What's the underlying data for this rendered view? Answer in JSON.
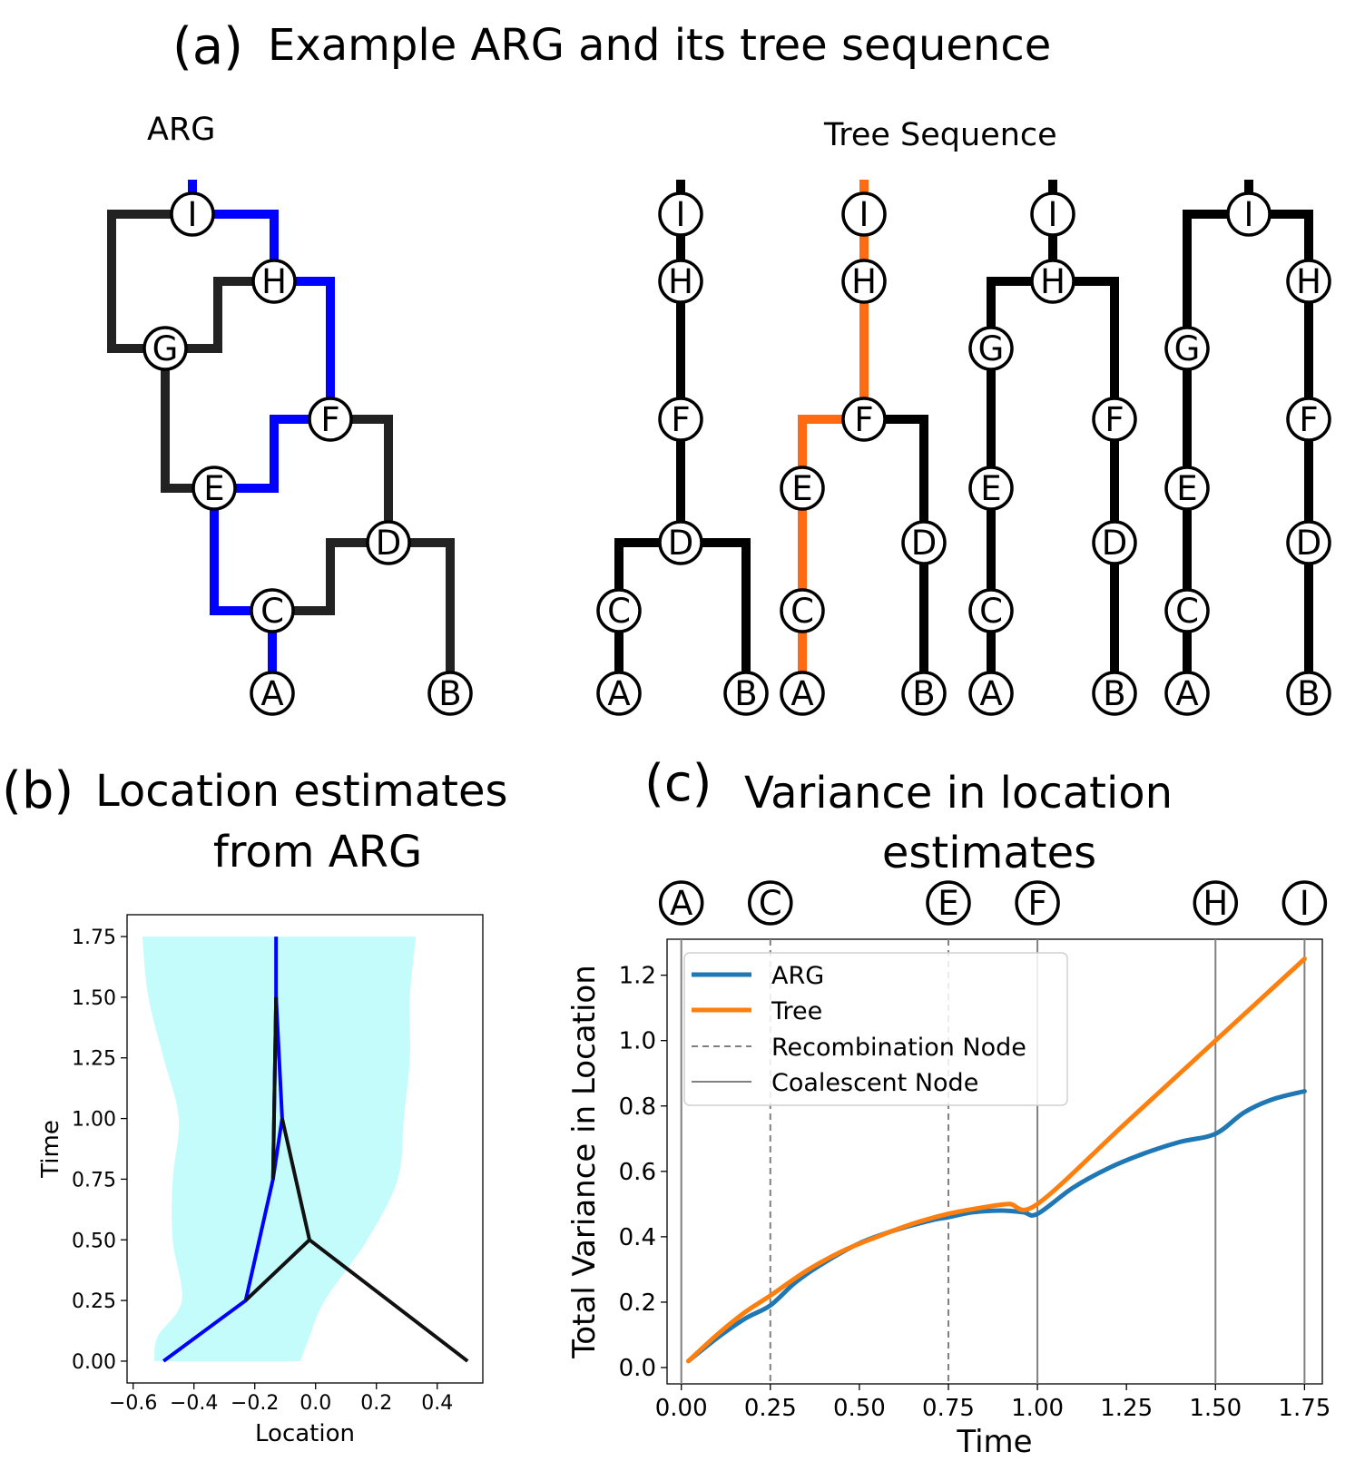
{
  "panel_a": {
    "letter": "(a)",
    "title": "Example ARG and its tree  sequence",
    "arg_label": "ARG",
    "tree_label": "Tree Sequence"
  },
  "panel_b": {
    "letter": "(b)",
    "title_line1": "Location estimates",
    "title_line2": "from ARG"
  },
  "panel_c": {
    "letter": "(c)",
    "title_line1": "Variance in location",
    "title_line2": "estimates",
    "node_markers": [
      "A",
      "C",
      "E",
      "F",
      "H",
      "I"
    ]
  },
  "colors": {
    "arg_path": "#0000ff",
    "tree_path": "#ff6a13",
    "edge": "#222222",
    "ci_band": "#c4fcfc",
    "arg_series": "#1f77b4",
    "tree_series": "#ff7f0e",
    "node_line": "#808080"
  },
  "chart_data": [
    {
      "type": "line",
      "panel": "b",
      "title": "",
      "xlabel": "Location",
      "ylabel": "Time",
      "xlim": [
        -0.62,
        0.55
      ],
      "ylim": [
        -0.09,
        1.84
      ],
      "xticks": [
        -0.6,
        -0.4,
        -0.2,
        0.0,
        0.2,
        0.4
      ],
      "xtick_labels": [
        "−0.6",
        "−0.4",
        "−0.2",
        "0.0",
        "0.2",
        "0.4"
      ],
      "yticks": [
        0.0,
        0.25,
        0.5,
        0.75,
        1.0,
        1.25,
        1.5,
        1.75
      ],
      "ytick_labels": [
        "0.00",
        "0.25",
        "0.50",
        "0.75",
        "1.00",
        "1.25",
        "1.50",
        "1.75"
      ],
      "band": {
        "time": [
          0.0,
          0.1,
          0.25,
          0.5,
          0.75,
          1.0,
          1.25,
          1.5,
          1.75
        ],
        "lower": [
          -0.53,
          -0.52,
          -0.44,
          -0.47,
          -0.47,
          -0.45,
          -0.5,
          -0.55,
          -0.57
        ],
        "upper": [
          -0.05,
          -0.02,
          0.03,
          0.17,
          0.27,
          0.29,
          0.31,
          0.31,
          0.33
        ]
      },
      "series": [
        {
          "name": "arg_path",
          "segments": [
            [
              [
                -0.5,
                0.0
              ],
              [
                -0.23,
                0.25
              ],
              [
                -0.14,
                0.75
              ],
              [
                -0.13,
                1.5
              ],
              [
                -0.13,
                1.75
              ]
            ],
            [
              [
                -0.13,
                1.5
              ],
              [
                -0.11,
                1.0
              ],
              [
                -0.14,
                0.75
              ]
            ]
          ]
        },
        {
          "name": "edges",
          "segments": [
            [
              [
                0.5,
                0.0
              ],
              [
                -0.02,
                0.5
              ],
              [
                -0.23,
                0.25
              ]
            ],
            [
              [
                -0.02,
                0.5
              ],
              [
                -0.11,
                1.0
              ]
            ],
            [
              [
                -0.14,
                0.75
              ],
              [
                -0.13,
                1.5
              ]
            ]
          ]
        }
      ]
    },
    {
      "type": "line",
      "panel": "c",
      "title": "",
      "xlabel": "Time",
      "ylabel": "Total Variance in Location",
      "xlim": [
        -0.04,
        1.8
      ],
      "ylim": [
        -0.05,
        1.31
      ],
      "xticks": [
        0.0,
        0.25,
        0.5,
        0.75,
        1.0,
        1.25,
        1.5,
        1.75
      ],
      "xtick_labels": [
        "0.00",
        "0.25",
        "0.50",
        "0.75",
        "1.00",
        "1.25",
        "1.50",
        "1.75"
      ],
      "yticks": [
        0.0,
        0.2,
        0.4,
        0.6,
        0.8,
        1.0,
        1.2
      ],
      "ytick_labels": [
        "0.0",
        "0.2",
        "0.4",
        "0.6",
        "0.8",
        "1.0",
        "1.2"
      ],
      "legend": {
        "placement": "top-left",
        "entries": [
          "ARG",
          "Tree",
          "Recombination Node",
          "Coalescent Node"
        ]
      },
      "series": [
        {
          "name": "ARG",
          "x": [
            0.02,
            0.1,
            0.18,
            0.25,
            0.32,
            0.4,
            0.5,
            0.6,
            0.7,
            0.75,
            0.82,
            0.9,
            0.96,
            1.0,
            1.1,
            1.2,
            1.3,
            1.4,
            1.5,
            1.58,
            1.66,
            1.75
          ],
          "y": [
            0.02,
            0.09,
            0.15,
            0.19,
            0.26,
            0.32,
            0.38,
            0.42,
            0.45,
            0.46,
            0.475,
            0.48,
            0.475,
            0.47,
            0.55,
            0.61,
            0.655,
            0.69,
            0.715,
            0.78,
            0.82,
            0.845
          ]
        },
        {
          "name": "Tree",
          "x": [
            0.02,
            0.1,
            0.18,
            0.25,
            0.35,
            0.45,
            0.55,
            0.65,
            0.75,
            0.85,
            0.92,
            1.0,
            1.25,
            1.5,
            1.75
          ],
          "y": [
            0.02,
            0.1,
            0.17,
            0.22,
            0.295,
            0.355,
            0.4,
            0.44,
            0.47,
            0.49,
            0.5,
            0.5,
            0.75,
            1.0,
            1.25
          ]
        }
      ],
      "recombination_times": [
        0.25,
        0.75
      ],
      "coalescent_times": [
        0.0,
        1.0,
        1.5,
        1.75
      ]
    }
  ]
}
